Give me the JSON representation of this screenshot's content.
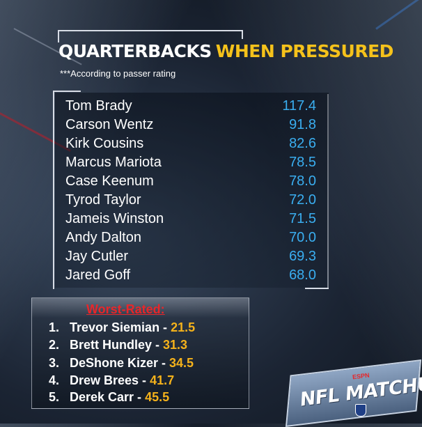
{
  "title": {
    "white": "QUARTERBACKS",
    "yellow": "WHEN PRESSURED"
  },
  "subtitle": "***According to passer rating",
  "quarterbacks": [
    {
      "name": "Tom Brady",
      "rating": "117.4"
    },
    {
      "name": "Carson Wentz",
      "rating": "91.8"
    },
    {
      "name": "Kirk Cousins",
      "rating": "82.6"
    },
    {
      "name": "Marcus Mariota",
      "rating": "78.5"
    },
    {
      "name": "Case Keenum",
      "rating": "78.0"
    },
    {
      "name": "Tyrod Taylor",
      "rating": "72.0"
    },
    {
      "name": "Jameis Winston",
      "rating": "71.5"
    },
    {
      "name": "Andy Dalton",
      "rating": "70.0"
    },
    {
      "name": "Jay Cutler",
      "rating": "69.3"
    },
    {
      "name": "Jared Goff",
      "rating": "68.0"
    }
  ],
  "worst": {
    "title": "Worst-Rated:",
    "items": [
      {
        "num": "1.",
        "name": "Trevor Siemian - ",
        "rating": "21.5"
      },
      {
        "num": "2.",
        "name": "Brett Hundley - ",
        "rating": "31.3"
      },
      {
        "num": "3.",
        "name": "DeShone Kizer - ",
        "rating": "34.5"
      },
      {
        "num": "4.",
        "name": "Drew Brees - ",
        "rating": "41.7"
      },
      {
        "num": "5.",
        "name": "Derek Carr - ",
        "rating": "45.5"
      }
    ]
  },
  "logo": {
    "text": "NFL MATCHUP",
    "network": "ESPN"
  },
  "colors": {
    "accent_yellow": "#f5c21b",
    "rating_blue": "#3aaef0",
    "worst_red": "#e8262a"
  }
}
